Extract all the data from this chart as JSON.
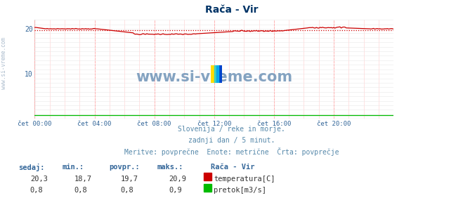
{
  "title": "Rača - Vir",
  "bg_color": "#ffffff",
  "plot_bg_color": "#ffffff",
  "xlim": [
    0,
    288
  ],
  "ylim": [
    0,
    22
  ],
  "yticks": [
    10,
    20
  ],
  "xtick_labels": [
    "čet 00:00",
    "čet 04:00",
    "čet 08:00",
    "čet 12:00",
    "čet 16:00",
    "čet 20:00"
  ],
  "xtick_positions": [
    0,
    48,
    96,
    144,
    192,
    240
  ],
  "temp_color": "#cc0000",
  "flow_color": "#00bb00",
  "avg_temp": 19.7,
  "temp_min": 18.7,
  "temp_max": 20.9,
  "flow_val": 0.8,
  "watermark": "www.si-vreme.com",
  "watermark_color": "#7799bb",
  "subtitle1": "Slovenija / reke in morje.",
  "subtitle2": "zadnji dan / 5 minut.",
  "subtitle3": "Meritve: povprečne  Enote: metrične  Črta: povprečje",
  "subtitle_color": "#5588aa",
  "station_label": "Rača - Vir",
  "label1": "temperatura[C]",
  "label2": "pretok[m3/s]",
  "col_headers": [
    "sedaj:",
    "min.:",
    "povpr.:",
    "maks.:"
  ],
  "row1_vals": [
    "20,3",
    "18,7",
    "19,7",
    "20,9"
  ],
  "row2_vals": [
    "0,8",
    "0,8",
    "0,8",
    "0,9"
  ],
  "table_color": "#336699",
  "val_color": "#333333"
}
